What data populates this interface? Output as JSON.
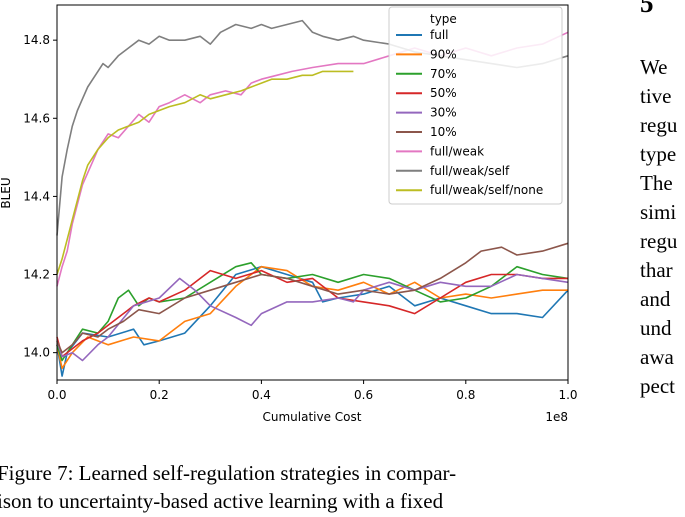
{
  "chart_data": {
    "type": "line",
    "xlabel": "Cumulative Cost",
    "ylabel": "BLEU",
    "x_offset_label": "1e8",
    "xlim": [
      0.0,
      1.0
    ],
    "ylim": [
      13.93,
      14.89
    ],
    "xticks": [
      0.0,
      0.2,
      0.4,
      0.6,
      0.8,
      1.0
    ],
    "xtick_labels": [
      "0.0",
      "0.2",
      "0.4",
      "0.6",
      "0.8",
      "1.0"
    ],
    "yticks": [
      14.0,
      14.2,
      14.4,
      14.6,
      14.8
    ],
    "ytick_labels": [
      "14.0",
      "14.2",
      "14.4",
      "14.6",
      "14.8"
    ],
    "grid": false,
    "legend_title": "type",
    "legend_position": "top-right",
    "series": [
      {
        "name": "full",
        "color": "#1f77b4",
        "points": [
          [
            0.0,
            14.02
          ],
          [
            0.01,
            13.94
          ],
          [
            0.02,
            14.0
          ],
          [
            0.05,
            14.05
          ],
          [
            0.1,
            14.04
          ],
          [
            0.15,
            14.06
          ],
          [
            0.17,
            14.02
          ],
          [
            0.2,
            14.03
          ],
          [
            0.25,
            14.05
          ],
          [
            0.3,
            14.12
          ],
          [
            0.35,
            14.2
          ],
          [
            0.4,
            14.22
          ],
          [
            0.45,
            14.2
          ],
          [
            0.5,
            14.18
          ],
          [
            0.52,
            14.13
          ],
          [
            0.55,
            14.14
          ],
          [
            0.6,
            14.15
          ],
          [
            0.65,
            14.17
          ],
          [
            0.7,
            14.12
          ],
          [
            0.75,
            14.14
          ],
          [
            0.8,
            14.12
          ],
          [
            0.85,
            14.1
          ],
          [
            0.9,
            14.1
          ],
          [
            0.95,
            14.09
          ],
          [
            1.0,
            14.16
          ]
        ]
      },
      {
        "name": "90%",
        "color": "#ff7f0e",
        "points": [
          [
            0.0,
            14.02
          ],
          [
            0.01,
            13.96
          ],
          [
            0.03,
            14.0
          ],
          [
            0.06,
            14.04
          ],
          [
            0.1,
            14.02
          ],
          [
            0.15,
            14.04
          ],
          [
            0.2,
            14.03
          ],
          [
            0.25,
            14.08
          ],
          [
            0.3,
            14.1
          ],
          [
            0.35,
            14.17
          ],
          [
            0.4,
            14.22
          ],
          [
            0.45,
            14.21
          ],
          [
            0.5,
            14.17
          ],
          [
            0.55,
            14.16
          ],
          [
            0.6,
            14.18
          ],
          [
            0.65,
            14.15
          ],
          [
            0.7,
            14.18
          ],
          [
            0.75,
            14.14
          ],
          [
            0.8,
            14.15
          ],
          [
            0.85,
            14.14
          ],
          [
            0.9,
            14.15
          ],
          [
            0.95,
            14.16
          ],
          [
            1.0,
            14.16
          ]
        ]
      },
      {
        "name": "70%",
        "color": "#2ca02c",
        "points": [
          [
            0.0,
            14.02
          ],
          [
            0.01,
            13.98
          ],
          [
            0.03,
            14.02
          ],
          [
            0.05,
            14.06
          ],
          [
            0.08,
            14.05
          ],
          [
            0.1,
            14.08
          ],
          [
            0.12,
            14.14
          ],
          [
            0.14,
            14.16
          ],
          [
            0.16,
            14.12
          ],
          [
            0.18,
            14.14
          ],
          [
            0.2,
            14.13
          ],
          [
            0.25,
            14.14
          ],
          [
            0.3,
            14.18
          ],
          [
            0.35,
            14.22
          ],
          [
            0.38,
            14.23
          ],
          [
            0.4,
            14.2
          ],
          [
            0.45,
            14.19
          ],
          [
            0.5,
            14.2
          ],
          [
            0.55,
            14.18
          ],
          [
            0.6,
            14.2
          ],
          [
            0.65,
            14.19
          ],
          [
            0.7,
            14.16
          ],
          [
            0.75,
            14.13
          ],
          [
            0.8,
            14.14
          ],
          [
            0.85,
            14.17
          ],
          [
            0.9,
            14.22
          ],
          [
            0.95,
            14.2
          ],
          [
            1.0,
            14.19
          ]
        ]
      },
      {
        "name": "50%",
        "color": "#d62728",
        "points": [
          [
            0.0,
            14.04
          ],
          [
            0.01,
            13.99
          ],
          [
            0.03,
            14.01
          ],
          [
            0.05,
            14.03
          ],
          [
            0.08,
            14.05
          ],
          [
            0.1,
            14.07
          ],
          [
            0.13,
            14.1
          ],
          [
            0.15,
            14.12
          ],
          [
            0.18,
            14.14
          ],
          [
            0.2,
            14.13
          ],
          [
            0.25,
            14.16
          ],
          [
            0.3,
            14.21
          ],
          [
            0.35,
            14.19
          ],
          [
            0.4,
            14.21
          ],
          [
            0.45,
            14.18
          ],
          [
            0.5,
            14.19
          ],
          [
            0.55,
            14.14
          ],
          [
            0.6,
            14.13
          ],
          [
            0.65,
            14.12
          ],
          [
            0.7,
            14.1
          ],
          [
            0.75,
            14.14
          ],
          [
            0.8,
            14.18
          ],
          [
            0.85,
            14.2
          ],
          [
            0.9,
            14.2
          ],
          [
            0.95,
            14.19
          ],
          [
            1.0,
            14.19
          ]
        ]
      },
      {
        "name": "30%",
        "color": "#9467bd",
        "points": [
          [
            0.0,
            14.03
          ],
          [
            0.01,
            13.99
          ],
          [
            0.03,
            14.0
          ],
          [
            0.05,
            13.98
          ],
          [
            0.08,
            14.02
          ],
          [
            0.1,
            14.04
          ],
          [
            0.15,
            14.12
          ],
          [
            0.2,
            14.14
          ],
          [
            0.24,
            14.19
          ],
          [
            0.27,
            14.16
          ],
          [
            0.3,
            14.12
          ],
          [
            0.35,
            14.09
          ],
          [
            0.38,
            14.07
          ],
          [
            0.4,
            14.1
          ],
          [
            0.45,
            14.13
          ],
          [
            0.5,
            14.13
          ],
          [
            0.55,
            14.14
          ],
          [
            0.58,
            14.13
          ],
          [
            0.6,
            14.16
          ],
          [
            0.65,
            14.18
          ],
          [
            0.7,
            14.16
          ],
          [
            0.75,
            14.18
          ],
          [
            0.8,
            14.17
          ],
          [
            0.85,
            14.17
          ],
          [
            0.9,
            14.2
          ],
          [
            0.95,
            14.19
          ],
          [
            1.0,
            14.18
          ]
        ]
      },
      {
        "name": "10%",
        "color": "#8c564b",
        "points": [
          [
            0.0,
            14.03
          ],
          [
            0.01,
            14.0
          ],
          [
            0.03,
            14.02
          ],
          [
            0.05,
            14.05
          ],
          [
            0.08,
            14.04
          ],
          [
            0.1,
            14.06
          ],
          [
            0.13,
            14.08
          ],
          [
            0.16,
            14.11
          ],
          [
            0.2,
            14.1
          ],
          [
            0.25,
            14.14
          ],
          [
            0.3,
            14.16
          ],
          [
            0.35,
            14.18
          ],
          [
            0.4,
            14.2
          ],
          [
            0.45,
            14.19
          ],
          [
            0.5,
            14.17
          ],
          [
            0.55,
            14.15
          ],
          [
            0.6,
            14.16
          ],
          [
            0.65,
            14.15
          ],
          [
            0.7,
            14.16
          ],
          [
            0.75,
            14.19
          ],
          [
            0.8,
            14.23
          ],
          [
            0.83,
            14.26
          ],
          [
            0.87,
            14.27
          ],
          [
            0.9,
            14.25
          ],
          [
            0.95,
            14.26
          ],
          [
            1.0,
            14.28
          ]
        ]
      },
      {
        "name": "full/weak",
        "color": "#e377c2",
        "points": [
          [
            0.0,
            14.17
          ],
          [
            0.01,
            14.22
          ],
          [
            0.02,
            14.26
          ],
          [
            0.03,
            14.33
          ],
          [
            0.05,
            14.43
          ],
          [
            0.07,
            14.49
          ],
          [
            0.08,
            14.52
          ],
          [
            0.1,
            14.56
          ],
          [
            0.12,
            14.55
          ],
          [
            0.14,
            14.58
          ],
          [
            0.16,
            14.61
          ],
          [
            0.18,
            14.59
          ],
          [
            0.2,
            14.63
          ],
          [
            0.22,
            14.64
          ],
          [
            0.25,
            14.66
          ],
          [
            0.28,
            14.64
          ],
          [
            0.3,
            14.66
          ],
          [
            0.33,
            14.67
          ],
          [
            0.36,
            14.66
          ],
          [
            0.38,
            14.69
          ],
          [
            0.4,
            14.7
          ],
          [
            0.43,
            14.71
          ],
          [
            0.46,
            14.72
          ],
          [
            0.5,
            14.73
          ],
          [
            0.55,
            14.74
          ],
          [
            0.6,
            14.74
          ],
          [
            0.65,
            14.76
          ],
          [
            0.7,
            14.78
          ],
          [
            0.75,
            14.76
          ],
          [
            0.8,
            14.78
          ],
          [
            0.85,
            14.76
          ],
          [
            0.9,
            14.78
          ],
          [
            0.95,
            14.79
          ],
          [
            1.0,
            14.82
          ]
        ]
      },
      {
        "name": "full/weak/self",
        "color": "#7f7f7f",
        "points": [
          [
            0.0,
            14.3
          ],
          [
            0.01,
            14.45
          ],
          [
            0.02,
            14.52
          ],
          [
            0.03,
            14.58
          ],
          [
            0.04,
            14.62
          ],
          [
            0.05,
            14.65
          ],
          [
            0.06,
            14.68
          ],
          [
            0.07,
            14.7
          ],
          [
            0.08,
            14.72
          ],
          [
            0.09,
            14.74
          ],
          [
            0.1,
            14.73
          ],
          [
            0.12,
            14.76
          ],
          [
            0.14,
            14.78
          ],
          [
            0.16,
            14.8
          ],
          [
            0.18,
            14.79
          ],
          [
            0.2,
            14.81
          ],
          [
            0.22,
            14.8
          ],
          [
            0.25,
            14.8
          ],
          [
            0.28,
            14.81
          ],
          [
            0.3,
            14.79
          ],
          [
            0.32,
            14.82
          ],
          [
            0.35,
            14.84
          ],
          [
            0.38,
            14.83
          ],
          [
            0.4,
            14.84
          ],
          [
            0.42,
            14.83
          ],
          [
            0.45,
            14.84
          ],
          [
            0.48,
            14.85
          ],
          [
            0.5,
            14.82
          ],
          [
            0.52,
            14.81
          ],
          [
            0.55,
            14.8
          ],
          [
            0.58,
            14.81
          ],
          [
            0.6,
            14.8
          ],
          [
            0.65,
            14.79
          ],
          [
            0.7,
            14.77
          ],
          [
            0.75,
            14.76
          ],
          [
            0.8,
            14.75
          ],
          [
            0.85,
            14.74
          ],
          [
            0.9,
            14.73
          ],
          [
            0.95,
            14.74
          ],
          [
            1.0,
            14.76
          ]
        ]
      },
      {
        "name": "full/weak/self/none",
        "color": "#bcbd22",
        "points": [
          [
            0.0,
            14.2
          ],
          [
            0.01,
            14.24
          ],
          [
            0.02,
            14.29
          ],
          [
            0.03,
            14.34
          ],
          [
            0.04,
            14.39
          ],
          [
            0.05,
            14.44
          ],
          [
            0.06,
            14.48
          ],
          [
            0.07,
            14.5
          ],
          [
            0.08,
            14.52
          ],
          [
            0.1,
            14.55
          ],
          [
            0.12,
            14.57
          ],
          [
            0.14,
            14.58
          ],
          [
            0.16,
            14.59
          ],
          [
            0.18,
            14.61
          ],
          [
            0.2,
            14.62
          ],
          [
            0.22,
            14.63
          ],
          [
            0.25,
            14.64
          ],
          [
            0.28,
            14.66
          ],
          [
            0.3,
            14.65
          ],
          [
            0.33,
            14.66
          ],
          [
            0.36,
            14.67
          ],
          [
            0.38,
            14.68
          ],
          [
            0.4,
            14.69
          ],
          [
            0.42,
            14.7
          ],
          [
            0.45,
            14.7
          ],
          [
            0.48,
            14.71
          ],
          [
            0.5,
            14.71
          ],
          [
            0.52,
            14.72
          ],
          [
            0.55,
            14.72
          ],
          [
            0.58,
            14.72
          ]
        ]
      }
    ]
  },
  "caption": {
    "line1": "Figure 7: Learned self-regulation strategies in compar-",
    "line2": "ison to uncertainty-based active learning with a fixed"
  },
  "section_number": "5",
  "right_column": [
    "We",
    "tive",
    "regu",
    "type",
    "The",
    "simi",
    "regu",
    "thar",
    "and",
    "und",
    "awa",
    "pect"
  ]
}
